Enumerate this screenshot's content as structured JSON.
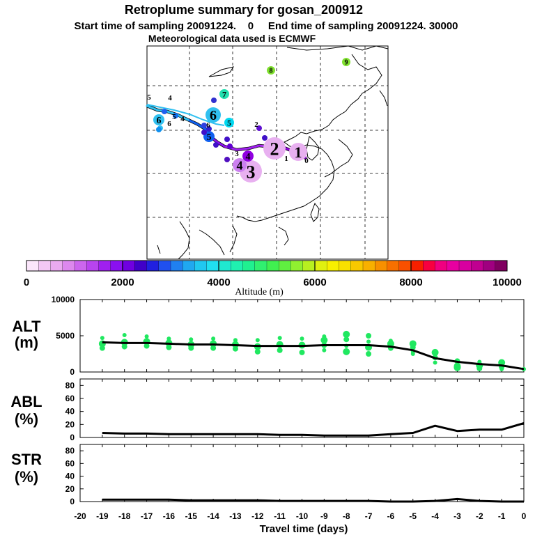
{
  "title": {
    "line1": "Retroplume summary for gosan_200912",
    "line2": "Start time of sampling 20091224.    0     End time of sampling 20091224. 30000",
    "line3": "Meteorological data used is ECMWF"
  },
  "map": {
    "trajectory_main": [
      {
        "day": "0",
        "color": "#9000e0"
      },
      {
        "day": "1",
        "color": "#b030f0"
      },
      {
        "day": "2",
        "color": "#a020f0"
      },
      {
        "day": "3",
        "color": "#8a10f0"
      },
      {
        "day": "4",
        "color": "#5010e0"
      },
      {
        "day": "5",
        "color": "#1060f0"
      },
      {
        "day": "6",
        "color": "#30c0f0"
      }
    ],
    "clusters": [
      {
        "label": "1",
        "color": "#e8b0f0"
      },
      {
        "label": "2",
        "color": "#e8b0f0"
      },
      {
        "label": "3",
        "color": "#e8b0f0"
      },
      {
        "label": "4",
        "color": "#cc80f0"
      },
      {
        "label": "4",
        "color": "#9000e0"
      },
      {
        "label": "5",
        "color": "#1060f0"
      },
      {
        "label": "5",
        "color": "#00d8f0"
      },
      {
        "label": "6",
        "color": "#30c0f0"
      },
      {
        "label": "6",
        "color": "#30c0f0"
      },
      {
        "label": "7",
        "color": "#20e0b0"
      },
      {
        "label": "8",
        "color": "#80e030"
      },
      {
        "label": "9",
        "color": "#80e030"
      }
    ],
    "small_labels": [
      "0",
      "1",
      "2",
      "3",
      "4",
      "4",
      "5",
      "5",
      "6",
      "6"
    ]
  },
  "colorbar": {
    "ticks": [
      "0",
      "2000",
      "4000",
      "6000",
      "8000",
      "10000"
    ],
    "label": "Altitude (m)",
    "colors": [
      "#fbe6fb",
      "#f3c8f5",
      "#eaaaf0",
      "#dd88ee",
      "#cc66ee",
      "#b844ee",
      "#a020f0",
      "#8a10f0",
      "#7000e0",
      "#4000c8",
      "#2020e0",
      "#2050f0",
      "#2080f0",
      "#20a8f0",
      "#20c8f0",
      "#20e0f0",
      "#20e8d0",
      "#20f0b0",
      "#20f090",
      "#30f070",
      "#40f050",
      "#60f040",
      "#90f030",
      "#b8f020",
      "#e0f010",
      "#f8f000",
      "#f8e000",
      "#f8c800",
      "#f8b000",
      "#f89000",
      "#f87000",
      "#f85000",
      "#f82000",
      "#f80040",
      "#f00080",
      "#e800a0",
      "#d800a0",
      "#c00090",
      "#a00080",
      "#800060"
    ]
  },
  "panels": {
    "alt_label_1": "ALT",
    "alt_label_2": "(m)",
    "abl_label_1": "ABL",
    "abl_label_2": "(%)",
    "str_label_1": "STR",
    "str_label_2": "(%)",
    "x_label": "Travel time (days)",
    "alt_yticks": [
      "0",
      "5000",
      "10000"
    ],
    "abl_yticks": [
      "0",
      "20",
      "40",
      "60",
      "80"
    ],
    "str_yticks": [
      "0",
      "20",
      "40",
      "60",
      "80"
    ],
    "x_ticks": [
      "-20",
      "-19",
      "-18",
      "-17",
      "-16",
      "-15",
      "-14",
      "-13",
      "-12",
      "-11",
      "-10",
      "-9",
      "-8",
      "-7",
      "-6",
      "-5",
      "-4",
      "-3",
      "-2",
      "-1",
      "0"
    ]
  },
  "chart_data": [
    {
      "type": "line",
      "title": "ALT (m)",
      "xlabel": "Travel time (days)",
      "ylabel": "ALT (m)",
      "xlim": [
        -20,
        0
      ],
      "ylim": [
        0,
        10000
      ],
      "x": [
        0,
        -1,
        -2,
        -3,
        -4,
        -5,
        -6,
        -7,
        -8,
        -9,
        -10,
        -11,
        -12,
        -13,
        -14,
        -15,
        -16,
        -17,
        -18,
        -19
      ],
      "series": [
        {
          "name": "mean altitude",
          "color": "#000000",
          "values": [
            400,
            900,
            1100,
            1400,
            1900,
            3000,
            3500,
            3700,
            3700,
            3700,
            3600,
            3600,
            3600,
            3700,
            3800,
            3800,
            3900,
            4000,
            4000,
            4100
          ]
        }
      ],
      "scatter": {
        "name": "cluster altitudes",
        "color": "#20e860",
        "points": [
          [
            0,
            400
          ],
          [
            -1,
            700
          ],
          [
            -1,
            1300
          ],
          [
            -1,
            400
          ],
          [
            -2,
            500
          ],
          [
            -2,
            900
          ],
          [
            -2,
            1400
          ],
          [
            -2,
            700
          ],
          [
            -3,
            600
          ],
          [
            -3,
            1100
          ],
          [
            -3,
            1500
          ],
          [
            -3,
            800
          ],
          [
            -4,
            1300
          ],
          [
            -4,
            2000
          ],
          [
            -4,
            2700
          ],
          [
            -5,
            2800
          ],
          [
            -5,
            3400
          ],
          [
            -5,
            3900
          ],
          [
            -5,
            2500
          ],
          [
            -6,
            3300
          ],
          [
            -6,
            3900
          ],
          [
            -6,
            4300
          ],
          [
            -7,
            2500
          ],
          [
            -7,
            3400
          ],
          [
            -7,
            4200
          ],
          [
            -7,
            5000
          ],
          [
            -8,
            2800
          ],
          [
            -8,
            3600
          ],
          [
            -8,
            4500
          ],
          [
            -8,
            5200
          ],
          [
            -9,
            3000
          ],
          [
            -9,
            3700
          ],
          [
            -9,
            4400
          ],
          [
            -9,
            4900
          ],
          [
            -10,
            2700
          ],
          [
            -10,
            3700
          ],
          [
            -10,
            4600
          ],
          [
            -11,
            3000
          ],
          [
            -11,
            3800
          ],
          [
            -11,
            4700
          ],
          [
            -12,
            2800
          ],
          [
            -12,
            3500
          ],
          [
            -12,
            4400
          ],
          [
            -13,
            3200
          ],
          [
            -13,
            3800
          ],
          [
            -13,
            4400
          ],
          [
            -14,
            3300
          ],
          [
            -14,
            3900
          ],
          [
            -14,
            4600
          ],
          [
            -15,
            3300
          ],
          [
            -15,
            3800
          ],
          [
            -15,
            4500
          ],
          [
            -16,
            3400
          ],
          [
            -16,
            4000
          ],
          [
            -16,
            4600
          ],
          [
            -17,
            3600
          ],
          [
            -17,
            4200
          ],
          [
            -17,
            4900
          ],
          [
            -18,
            3500
          ],
          [
            -18,
            4100
          ],
          [
            -18,
            5100
          ],
          [
            -19,
            3300
          ],
          [
            -19,
            3900
          ],
          [
            -19,
            4700
          ]
        ]
      }
    },
    {
      "type": "line",
      "title": "ABL (%)",
      "xlabel": "Travel time (days)",
      "ylabel": "ABL (%)",
      "xlim": [
        -20,
        0
      ],
      "ylim": [
        0,
        90
      ],
      "x": [
        0,
        -1,
        -2,
        -3,
        -4,
        -5,
        -6,
        -7,
        -8,
        -9,
        -10,
        -11,
        -12,
        -13,
        -14,
        -15,
        -16,
        -17,
        -18,
        -19
      ],
      "series": [
        {
          "name": "ABL fraction",
          "color": "#000000",
          "values": [
            22,
            12,
            12,
            10,
            18,
            7,
            5,
            3,
            3,
            3,
            4,
            4,
            5,
            5,
            5,
            5,
            5,
            6,
            6,
            7
          ]
        }
      ]
    },
    {
      "type": "line",
      "title": "STR (%)",
      "xlabel": "Travel time (days)",
      "ylabel": "STR (%)",
      "xlim": [
        -20,
        0
      ],
      "ylim": [
        0,
        90
      ],
      "x": [
        0,
        -1,
        -2,
        -3,
        -4,
        -5,
        -6,
        -7,
        -8,
        -9,
        -10,
        -11,
        -12,
        -13,
        -14,
        -15,
        -16,
        -17,
        -18,
        -19
      ],
      "series": [
        {
          "name": "STR fraction",
          "color": "#000000",
          "values": [
            0,
            0,
            1,
            4,
            1,
            0,
            0,
            1,
            1,
            1,
            1,
            1,
            2,
            2,
            2,
            2,
            3,
            3,
            3,
            3
          ]
        }
      ]
    }
  ]
}
